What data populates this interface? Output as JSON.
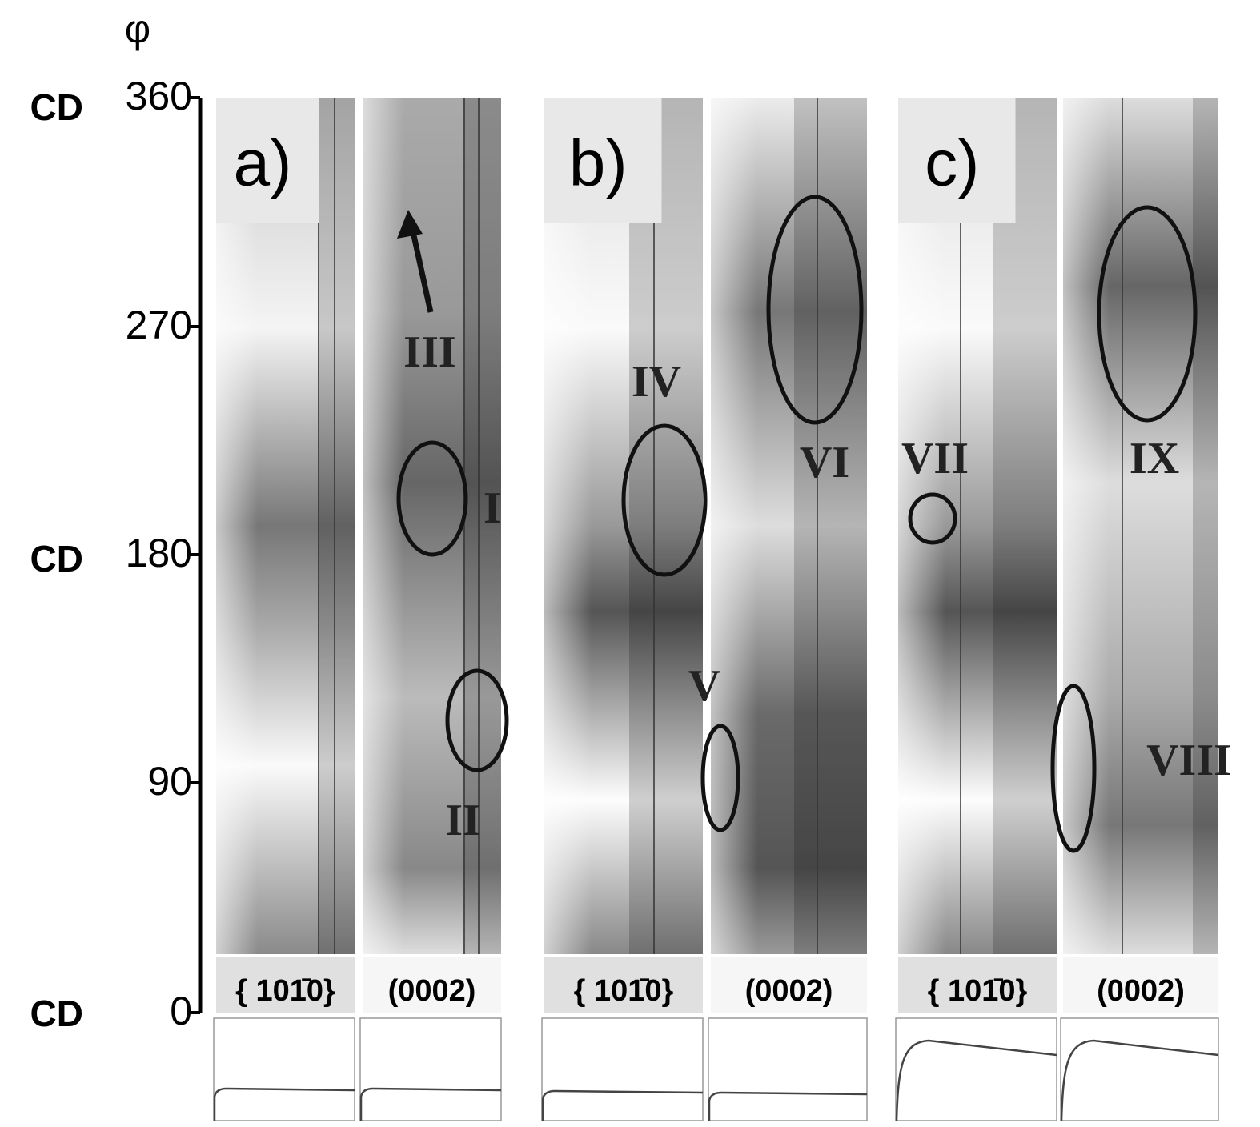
{
  "axis": {
    "symbol": "φ",
    "ticks": [
      360,
      270,
      180,
      90,
      0
    ],
    "reference_labels": [
      "CD",
      "CD",
      "CD"
    ]
  },
  "panels": [
    {
      "label": "a)",
      "strips": [
        "{ 101̄0}",
        "(0002)"
      ],
      "annotations": [
        "III",
        "I",
        "II"
      ]
    },
    {
      "label": "b)",
      "strips": [
        "{ 101̄0}",
        "(0002)"
      ],
      "annotations": [
        "IV",
        "V",
        "VI"
      ]
    },
    {
      "label": "c)",
      "strips": [
        "{ 101̄0}",
        "(0002)"
      ],
      "annotations": [
        "VII",
        "VIII",
        "IX"
      ]
    }
  ]
}
